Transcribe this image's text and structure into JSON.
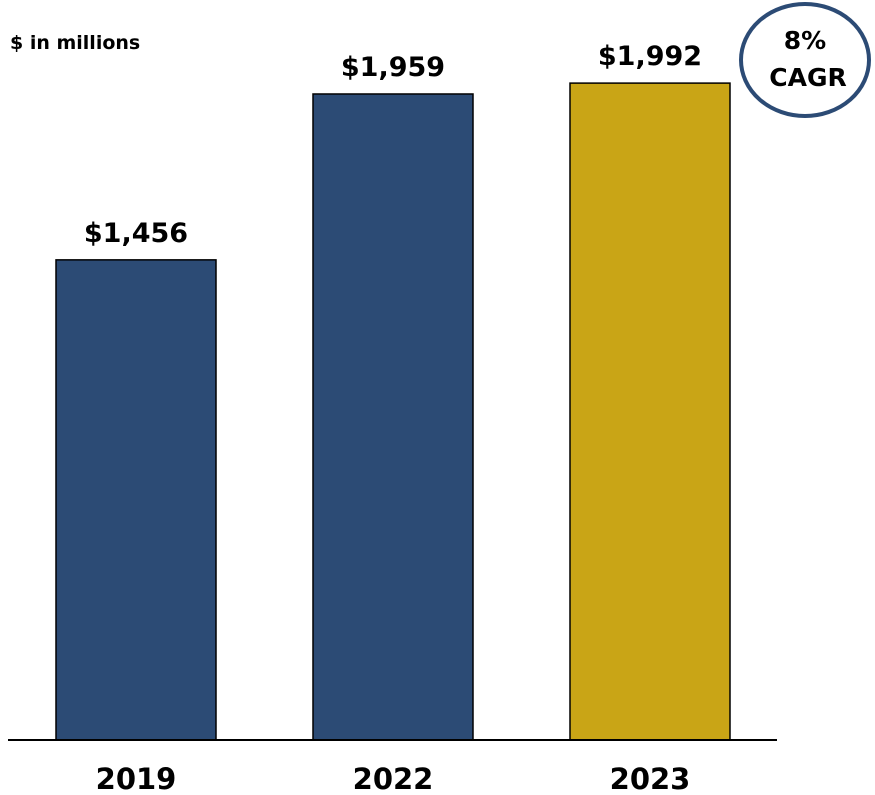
{
  "unit_label": "$ in millions",
  "badge": {
    "line1": "8%",
    "line2": "CAGR"
  },
  "colors": {
    "default_bar": "#2C4B75",
    "highlight_bar": "#C9A516",
    "badge_border": "#2C4B75",
    "axis": "#000000"
  },
  "chart_data": {
    "type": "bar",
    "categories": [
      "2019",
      "2022",
      "2023"
    ],
    "values": [
      1456,
      1959,
      1992
    ],
    "data_labels": [
      "$1,456",
      "$1,959",
      "$1,992"
    ],
    "highlight_index": 2,
    "title": "",
    "xlabel": "",
    "ylabel": "",
    "ylim": [
      0,
      2150
    ],
    "grid": false,
    "legend": "none"
  }
}
